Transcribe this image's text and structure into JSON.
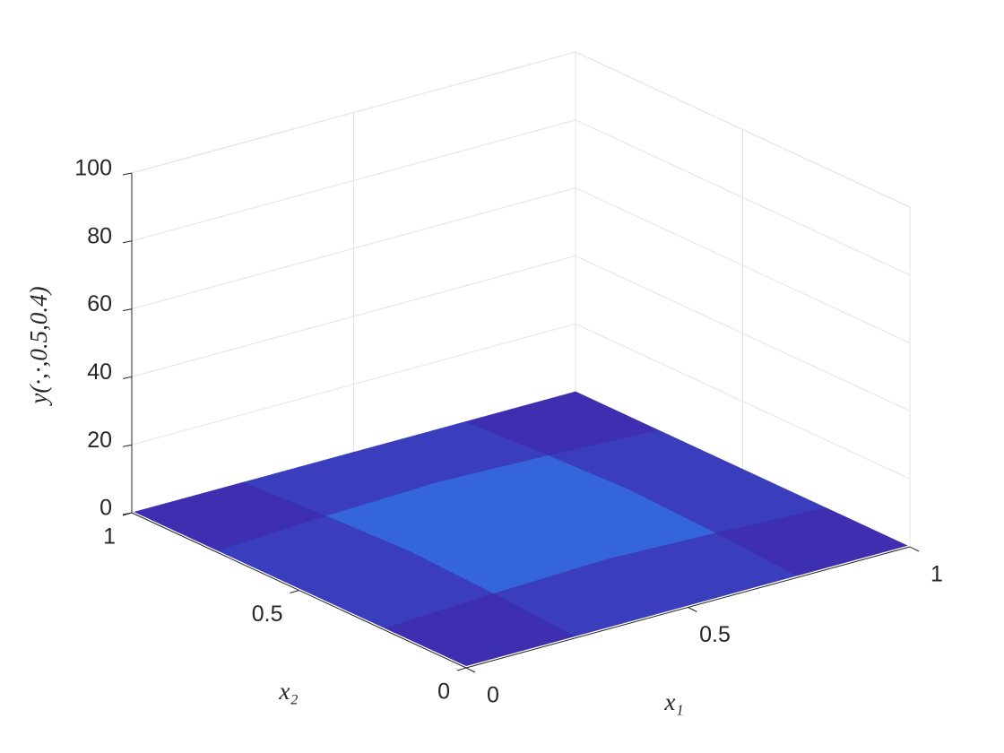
{
  "chart_data": {
    "type": "surface",
    "xlabel": "x₁",
    "ylabel": "x₂",
    "zlabel": "y(·,·,0.5,0.4)",
    "x": [
      0,
      0.25,
      0.5,
      0.75,
      1
    ],
    "y": [
      0,
      0.25,
      0.5,
      0.75,
      1
    ],
    "z": [
      [
        0,
        0,
        0,
        0,
        0
      ],
      [
        0,
        1.5,
        2.5,
        1.5,
        0
      ],
      [
        0,
        2.5,
        4,
        2.5,
        0
      ],
      [
        0,
        1.5,
        2.5,
        1.5,
        0
      ],
      [
        0,
        0,
        0,
        0,
        0
      ]
    ],
    "xlim": [
      0,
      1
    ],
    "ylim": [
      0,
      1
    ],
    "zlim": [
      0,
      100
    ],
    "xticks": [
      0,
      0.5,
      1
    ],
    "yticks": [
      0,
      0.5,
      1
    ],
    "zticks": [
      0,
      20,
      40,
      60,
      80,
      100
    ],
    "grid": true,
    "colormap": [
      "#3e26a8",
      "#2f86f6"
    ]
  }
}
